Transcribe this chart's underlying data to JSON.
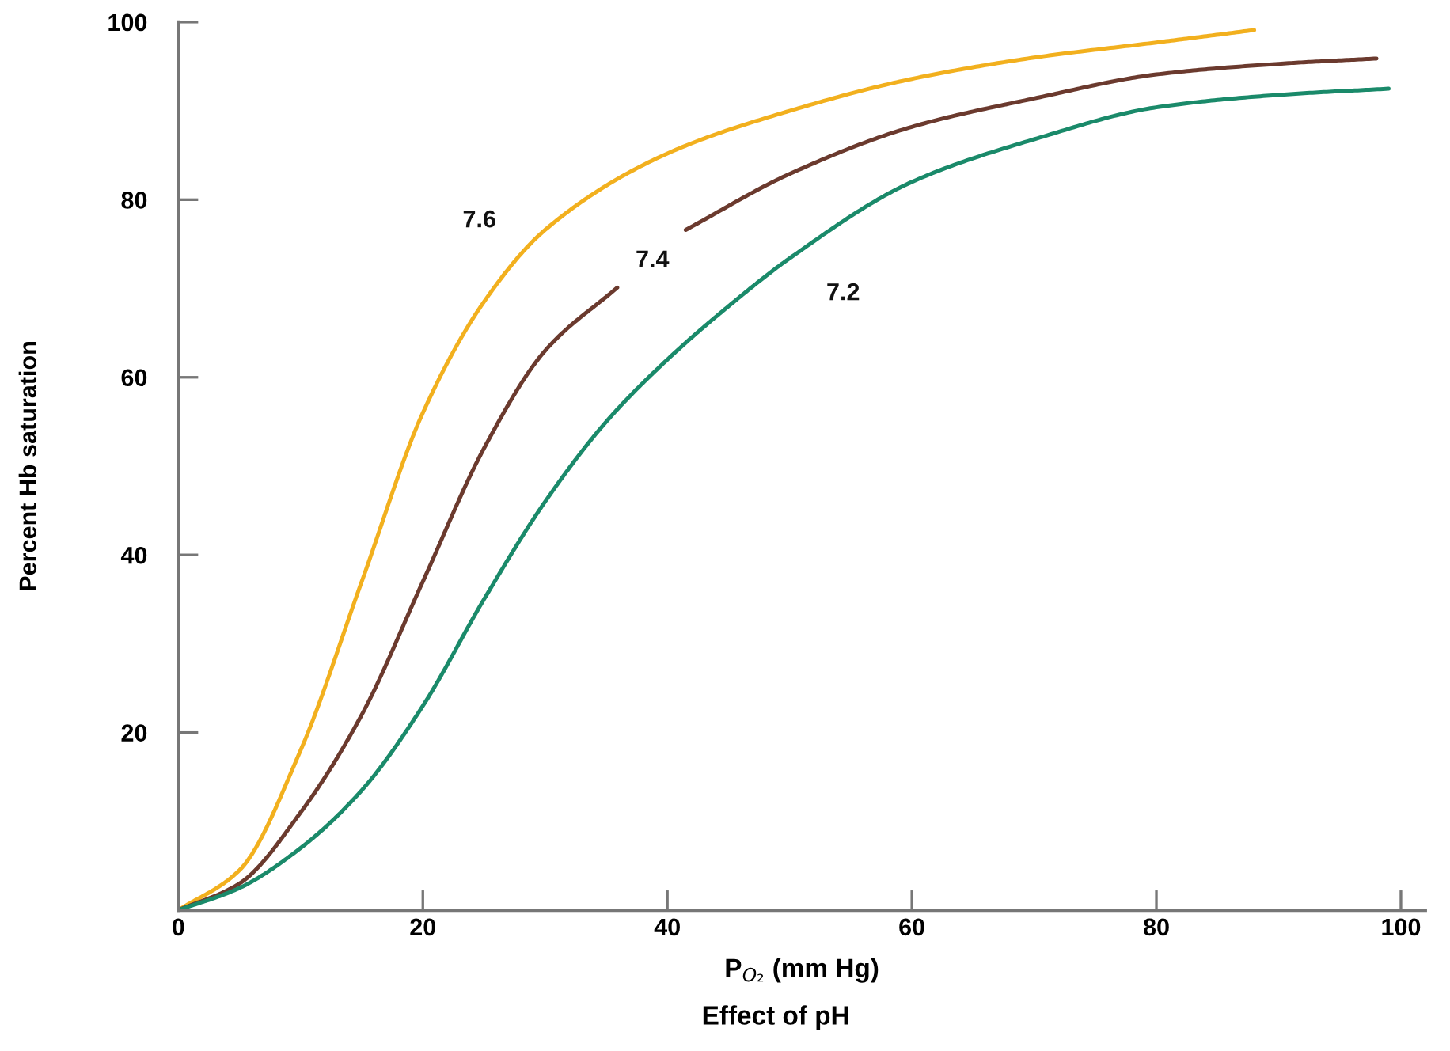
{
  "chart_data": {
    "type": "line",
    "title": "Effect of pH",
    "xlabel": "P$_{O₂}$ (mm Hg)",
    "ylabel": "Percent Hb saturation",
    "xlim": [
      0,
      102
    ],
    "ylim": [
      0,
      100
    ],
    "xticks": [
      0,
      20,
      40,
      60,
      80,
      100
    ],
    "yticks": [
      20,
      40,
      60,
      80,
      100
    ],
    "grid": false,
    "legend": false,
    "marker": "none",
    "line_style": "solid",
    "series": [
      {
        "name": "7.6",
        "color": "#f2b01e",
        "x": [
          0,
          5,
          10,
          15,
          20,
          25,
          30,
          40,
          50,
          60,
          70,
          80,
          88
        ],
        "values": [
          0,
          4.5,
          18,
          37,
          56,
          68.5,
          76.6,
          85.2,
          90,
          93.6,
          96,
          97.7,
          99.1
        ]
      },
      {
        "name": "7.4",
        "color": "#6b3a2e",
        "x": [
          0,
          5,
          10,
          15,
          20,
          25,
          30,
          35.9,
          38,
          41.5,
          50,
          60,
          70,
          80,
          90,
          98
        ],
        "values": [
          0,
          3,
          11,
          22,
          37,
          52,
          63,
          70.1,
          null,
          76.6,
          82.9,
          88.2,
          91.4,
          94.1,
          95.3,
          95.9
        ]
      },
      {
        "name": "7.2",
        "color": "#1a8a6a",
        "x": [
          0,
          5,
          10,
          15,
          20,
          25,
          30,
          35,
          40,
          45,
          50,
          60,
          70,
          80,
          90,
          99
        ],
        "values": [
          0,
          2.5,
          7,
          13.5,
          23,
          35,
          46,
          55,
          62,
          68,
          73.4,
          82,
          86.8,
          90.4,
          91.8,
          92.5
        ]
      }
    ]
  }
}
